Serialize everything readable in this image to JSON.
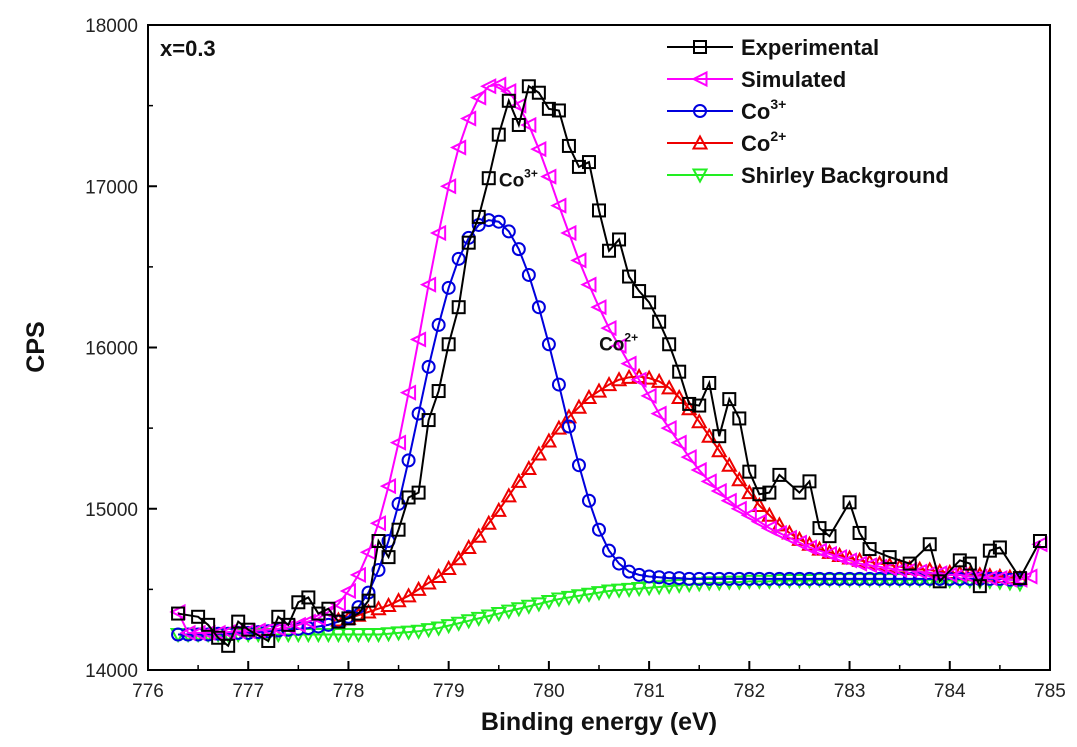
{
  "chart_data": {
    "type": "line",
    "annotation": "x=0.3",
    "xlabel": "Binding energy (eV)",
    "ylabel": "CPS",
    "xlim": [
      776,
      785
    ],
    "ylim": [
      14000,
      18000
    ],
    "xticks": [
      776,
      777,
      778,
      779,
      780,
      781,
      782,
      783,
      784,
      785
    ],
    "yticks": [
      14000,
      15000,
      16000,
      17000,
      18000
    ],
    "grid": false,
    "legend_placement": "top-right",
    "peak_labels": [
      {
        "base": "Co",
        "sup": "3+",
        "x": 779.8,
        "y": 17000
      },
      {
        "base": "Co",
        "sup": "2+",
        "x": 780.8,
        "y": 15980
      }
    ],
    "series": [
      {
        "name": "Experimental",
        "color": "#000000",
        "marker": "square",
        "x": [
          776.3,
          776.5,
          776.6,
          776.7,
          776.8,
          776.9,
          777.0,
          777.2,
          777.3,
          777.4,
          777.5,
          777.6,
          777.7,
          777.8,
          777.9,
          778.0,
          778.1,
          778.2,
          778.3,
          778.4,
          778.5,
          778.6,
          778.7,
          778.8,
          778.9,
          779.0,
          779.1,
          779.2,
          779.3,
          779.4,
          779.5,
          779.6,
          779.7,
          779.8,
          779.9,
          780.0,
          780.1,
          780.2,
          780.3,
          780.4,
          780.5,
          780.6,
          780.7,
          780.8,
          780.9,
          781.0,
          781.1,
          781.2,
          781.3,
          781.4,
          781.5,
          781.6,
          781.7,
          781.8,
          781.9,
          782.0,
          782.1,
          782.2,
          782.3,
          782.5,
          782.6,
          782.7,
          782.8,
          783.0,
          783.1,
          783.2,
          783.4,
          783.6,
          783.8,
          783.9,
          784.1,
          784.2,
          784.3,
          784.4,
          784.5,
          784.7,
          784.9
        ],
        "values": [
          14350,
          14330,
          14280,
          14200,
          14150,
          14300,
          14250,
          14180,
          14330,
          14280,
          14420,
          14450,
          14350,
          14380,
          14300,
          14320,
          14350,
          14430,
          14800,
          14700,
          14870,
          15070,
          15100,
          15550,
          15730,
          16020,
          16250,
          16650,
          16810,
          17050,
          17320,
          17530,
          17380,
          17620,
          17580,
          17480,
          17470,
          17250,
          17120,
          17150,
          16850,
          16600,
          16670,
          16440,
          16350,
          16280,
          16160,
          16020,
          15850,
          15650,
          15640,
          15780,
          15450,
          15680,
          15560,
          15230,
          15090,
          15100,
          15210,
          15100,
          15170,
          14880,
          14830,
          15040,
          14850,
          14750,
          14700,
          14660,
          14780,
          14550,
          14680,
          14660,
          14520,
          14740,
          14760,
          14570,
          14800
        ]
      },
      {
        "name": "Simulated",
        "color": "#ff00ff",
        "marker": "triangle-left",
        "x": [
          776.3,
          776.4,
          776.5,
          776.6,
          776.7,
          776.8,
          776.9,
          777.0,
          777.1,
          777.2,
          777.3,
          777.4,
          777.5,
          777.6,
          777.7,
          777.8,
          777.9,
          778.0,
          778.1,
          778.2,
          778.3,
          778.4,
          778.5,
          778.6,
          778.7,
          778.8,
          778.9,
          779.0,
          779.1,
          779.2,
          779.3,
          779.4,
          779.5,
          779.6,
          779.7,
          779.8,
          779.9,
          780.0,
          780.1,
          780.2,
          780.3,
          780.4,
          780.5,
          780.6,
          780.7,
          780.8,
          780.9,
          781.0,
          781.1,
          781.2,
          781.3,
          781.4,
          781.5,
          781.6,
          781.7,
          781.8,
          781.9,
          782.0,
          782.1,
          782.2,
          782.3,
          782.4,
          782.5,
          782.6,
          782.7,
          782.8,
          782.9,
          783.0,
          783.1,
          783.2,
          783.3,
          783.4,
          783.5,
          783.6,
          783.7,
          783.8,
          783.9,
          784.0,
          784.1,
          784.2,
          784.3,
          784.4,
          784.5,
          784.6,
          784.7,
          784.8,
          784.9
        ],
        "values": [
          14360,
          14230,
          14230,
          14230,
          14230,
          14235,
          14240,
          14240,
          14245,
          14250,
          14255,
          14265,
          14280,
          14300,
          14320,
          14360,
          14410,
          14490,
          14590,
          14730,
          14910,
          15140,
          15410,
          15720,
          16050,
          16390,
          16710,
          17000,
          17240,
          17420,
          17550,
          17620,
          17630,
          17590,
          17500,
          17380,
          17230,
          17060,
          16880,
          16710,
          16540,
          16390,
          16250,
          16120,
          16010,
          15900,
          15800,
          15700,
          15590,
          15500,
          15410,
          15320,
          15240,
          15170,
          15110,
          15050,
          15000,
          14960,
          14920,
          14880,
          14850,
          14820,
          14790,
          14760,
          14740,
          14720,
          14700,
          14680,
          14660,
          14650,
          14640,
          14630,
          14620,
          14620,
          14610,
          14600,
          14600,
          14590,
          14590,
          14580,
          14580,
          14570,
          14570,
          14560,
          14560,
          14580,
          14780
        ]
      },
      {
        "name": "Co3+",
        "color": "#0000dd",
        "marker": "circle",
        "x": [
          776.3,
          776.4,
          776.5,
          776.6,
          776.7,
          776.8,
          776.9,
          777.0,
          777.1,
          777.2,
          777.3,
          777.4,
          777.5,
          777.6,
          777.7,
          777.8,
          777.9,
          778.0,
          778.1,
          778.2,
          778.3,
          778.4,
          778.5,
          778.6,
          778.7,
          778.8,
          778.9,
          779.0,
          779.1,
          779.2,
          779.3,
          779.4,
          779.5,
          779.6,
          779.7,
          779.8,
          779.9,
          780.0,
          780.1,
          780.2,
          780.3,
          780.4,
          780.5,
          780.6,
          780.7,
          780.8,
          780.9,
          781.0,
          781.1,
          781.2,
          781.3,
          781.4,
          781.5,
          781.6,
          781.7,
          781.8,
          781.9,
          782.0,
          782.1,
          782.2,
          782.3,
          782.4,
          782.5,
          782.6,
          782.7,
          782.8,
          782.9,
          783.0,
          783.1,
          783.2,
          783.3,
          783.4,
          783.5,
          783.6,
          783.7,
          783.8,
          783.9,
          784.0,
          784.1,
          784.2,
          784.3,
          784.4,
          784.5,
          784.6,
          784.7
        ],
        "values": [
          14220,
          14220,
          14220,
          14220,
          14225,
          14225,
          14230,
          14230,
          14235,
          14240,
          14245,
          14250,
          14255,
          14260,
          14270,
          14280,
          14300,
          14330,
          14390,
          14480,
          14620,
          14800,
          15030,
          15300,
          15590,
          15880,
          16140,
          16370,
          16550,
          16680,
          16760,
          16790,
          16780,
          16720,
          16610,
          16450,
          16250,
          16020,
          15770,
          15510,
          15270,
          15050,
          14870,
          14740,
          14660,
          14610,
          14590,
          14580,
          14575,
          14570,
          14570,
          14565,
          14565,
          14565,
          14565,
          14565,
          14565,
          14565,
          14565,
          14565,
          14565,
          14565,
          14565,
          14565,
          14565,
          14565,
          14565,
          14565,
          14565,
          14565,
          14565,
          14565,
          14565,
          14565,
          14565,
          14565,
          14565,
          14565,
          14565,
          14565,
          14565,
          14565,
          14565,
          14560,
          14560
        ]
      },
      {
        "name": "Co2+",
        "color": "#ee0000",
        "marker": "triangle-up",
        "x": [
          777.9,
          778.0,
          778.1,
          778.2,
          778.3,
          778.4,
          778.5,
          778.6,
          778.7,
          778.8,
          778.9,
          779.0,
          779.1,
          779.2,
          779.3,
          779.4,
          779.5,
          779.6,
          779.7,
          779.8,
          779.9,
          780.0,
          780.1,
          780.2,
          780.3,
          780.4,
          780.5,
          780.6,
          780.7,
          780.8,
          780.9,
          781.0,
          781.1,
          781.2,
          781.3,
          781.4,
          781.5,
          781.6,
          781.7,
          781.8,
          781.9,
          782.0,
          782.1,
          782.2,
          782.3,
          782.4,
          782.5,
          782.6,
          782.7,
          782.8,
          782.9,
          783.0,
          783.1,
          783.2,
          783.3,
          783.4,
          783.5,
          783.6,
          783.7,
          783.8,
          783.9,
          784.0,
          784.1,
          784.2,
          784.3,
          784.4,
          784.5,
          784.6,
          784.7
        ],
        "values": [
          14310,
          14320,
          14340,
          14360,
          14380,
          14400,
          14430,
          14460,
          14500,
          14540,
          14580,
          14630,
          14690,
          14760,
          14830,
          14910,
          14990,
          15080,
          15170,
          15250,
          15340,
          15420,
          15500,
          15570,
          15630,
          15690,
          15730,
          15770,
          15800,
          15815,
          15820,
          15810,
          15790,
          15750,
          15690,
          15620,
          15540,
          15450,
          15360,
          15270,
          15180,
          15100,
          15020,
          14960,
          14900,
          14850,
          14810,
          14780,
          14750,
          14730,
          14710,
          14695,
          14680,
          14670,
          14660,
          14650,
          14640,
          14630,
          14625,
          14620,
          14610,
          14605,
          14600,
          14595,
          14590,
          14585,
          14580,
          14575,
          14570
        ]
      },
      {
        "name": "Shirley Background",
        "color": "#22ee22",
        "marker": "triangle-down",
        "x": [
          776.3,
          776.4,
          776.5,
          776.6,
          776.7,
          776.8,
          776.9,
          777.0,
          777.1,
          777.2,
          777.3,
          777.4,
          777.5,
          777.6,
          777.7,
          777.8,
          777.9,
          778.0,
          778.1,
          778.2,
          778.3,
          778.4,
          778.5,
          778.6,
          778.7,
          778.8,
          778.9,
          779.0,
          779.1,
          779.2,
          779.3,
          779.4,
          779.5,
          779.6,
          779.7,
          779.8,
          779.9,
          780.0,
          780.1,
          780.2,
          780.3,
          780.4,
          780.5,
          780.6,
          780.7,
          780.8,
          780.9,
          781.0,
          781.1,
          781.2,
          781.3,
          781.4,
          781.5,
          781.6,
          781.7,
          781.8,
          781.9,
          782.0,
          782.1,
          782.2,
          782.3,
          782.4,
          782.5,
          782.6,
          782.7,
          782.8,
          782.9,
          783.0,
          783.1,
          783.2,
          783.3,
          783.4,
          783.5,
          783.6,
          783.7,
          783.8,
          783.9,
          784.0,
          784.1,
          784.2,
          784.3,
          784.4,
          784.5,
          784.6,
          784.7
        ],
        "values": [
          14220,
          14220,
          14220,
          14220,
          14220,
          14220,
          14220,
          14220,
          14220,
          14220,
          14220,
          14220,
          14220,
          14220,
          14220,
          14220,
          14220,
          14220,
          14220,
          14220,
          14220,
          14225,
          14230,
          14235,
          14240,
          14250,
          14260,
          14275,
          14290,
          14305,
          14320,
          14335,
          14350,
          14365,
          14380,
          14395,
          14410,
          14425,
          14440,
          14450,
          14460,
          14470,
          14480,
          14490,
          14495,
          14500,
          14505,
          14510,
          14515,
          14520,
          14525,
          14530,
          14535,
          14540,
          14540,
          14545,
          14545,
          14550,
          14550,
          14550,
          14555,
          14555,
          14555,
          14555,
          14560,
          14560,
          14560,
          14560,
          14560,
          14560,
          14560,
          14560,
          14560,
          14560,
          14560,
          14560,
          14560,
          14555,
          14555,
          14555,
          14550,
          14550,
          14545,
          14540,
          14535
        ]
      }
    ]
  }
}
